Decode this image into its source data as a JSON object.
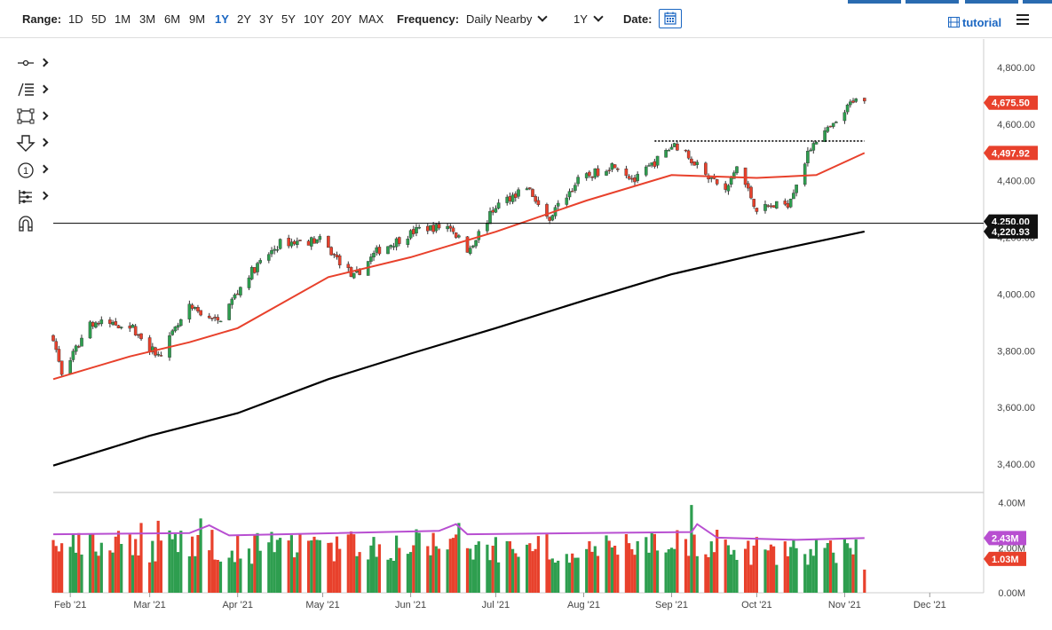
{
  "toolbar": {
    "range_label": "Range:",
    "ranges": [
      "1D",
      "5D",
      "1M",
      "3M",
      "6M",
      "9M",
      "1Y",
      "2Y",
      "3Y",
      "5Y",
      "10Y",
      "20Y",
      "MAX"
    ],
    "active_range": "1Y",
    "frequency_label": "Frequency:",
    "frequency_value": "Daily Nearby",
    "period_value": "1Y",
    "date_label": "Date:",
    "tutorial_label": "tutorial"
  },
  "tools": [
    "crosshair-icon",
    "fibonacci-icon",
    "rectangle-icon",
    "arrow-down-icon",
    "annotation-number-icon",
    "measure-icon",
    "magnet-icon"
  ],
  "colors": {
    "up_candle": "#2e9e4f",
    "down_candle": "#e8412c",
    "ma_short": "#e8412c",
    "ma_long": "#000000",
    "volume_avg": "#b84fd1",
    "price_badge": "#e8412c",
    "volume_badge": "#b84fd1"
  },
  "chart_data": {
    "type": "candlestick",
    "x_range": [
      "2021-01-26",
      "2021-12-20"
    ],
    "x_ticks": [
      "Feb '21",
      "Mar '21",
      "Apr '21",
      "May '21",
      "Jun '21",
      "Jul '21",
      "Aug '21",
      "Sep '21",
      "Oct '21",
      "Nov '21",
      "Dec '21"
    ],
    "price_axis": {
      "ylim": [
        3300,
        4900
      ],
      "ticks": [
        "3,400.00",
        "3,600.00",
        "3,800.00",
        "4,000.00",
        "4,200.00",
        "4,400.00",
        "4,600.00",
        "4,800.00"
      ]
    },
    "volume_axis": {
      "ylim": [
        0,
        4.3
      ],
      "ticks": [
        "0.00M",
        "2.00M",
        "4.00M"
      ]
    },
    "price_close_path": [
      {
        "d": "2021-01-26",
        "v": 3850
      },
      {
        "d": "2021-01-29",
        "v": 3710
      },
      {
        "d": "2021-02-08",
        "v": 3900
      },
      {
        "d": "2021-02-22",
        "v": 3890
      },
      {
        "d": "2021-03-04",
        "v": 3780
      },
      {
        "d": "2021-03-15",
        "v": 3950
      },
      {
        "d": "2021-03-25",
        "v": 3900
      },
      {
        "d": "2021-04-05",
        "v": 4070
      },
      {
        "d": "2021-04-16",
        "v": 4180
      },
      {
        "d": "2021-04-30",
        "v": 4190
      },
      {
        "d": "2021-05-12",
        "v": 4060
      },
      {
        "d": "2021-05-20",
        "v": 4150
      },
      {
        "d": "2021-06-04",
        "v": 4230
      },
      {
        "d": "2021-06-15",
        "v": 4240
      },
      {
        "d": "2021-06-21",
        "v": 4150
      },
      {
        "d": "2021-07-01",
        "v": 4310
      },
      {
        "d": "2021-07-12",
        "v": 4380
      },
      {
        "d": "2021-07-19",
        "v": 4260
      },
      {
        "d": "2021-07-30",
        "v": 4400
      },
      {
        "d": "2021-08-12",
        "v": 4460
      },
      {
        "d": "2021-08-19",
        "v": 4400
      },
      {
        "d": "2021-09-02",
        "v": 4530
      },
      {
        "d": "2021-09-10",
        "v": 4460
      },
      {
        "d": "2021-09-20",
        "v": 4360
      },
      {
        "d": "2021-09-24",
        "v": 4450
      },
      {
        "d": "2021-10-01",
        "v": 4300
      },
      {
        "d": "2021-10-12",
        "v": 4320
      },
      {
        "d": "2021-10-21",
        "v": 4540
      },
      {
        "d": "2021-10-29",
        "v": 4600
      },
      {
        "d": "2021-11-05",
        "v": 4700
      },
      {
        "d": "2021-11-08",
        "v": 4675
      }
    ],
    "ma_short_path": [
      {
        "d": "2021-01-26",
        "v": 3700
      },
      {
        "d": "2021-02-22",
        "v": 3780
      },
      {
        "d": "2021-03-15",
        "v": 3830
      },
      {
        "d": "2021-04-01",
        "v": 3880
      },
      {
        "d": "2021-05-03",
        "v": 4060
      },
      {
        "d": "2021-06-01",
        "v": 4130
      },
      {
        "d": "2021-07-01",
        "v": 4220
      },
      {
        "d": "2021-08-02",
        "v": 4330
      },
      {
        "d": "2021-09-01",
        "v": 4420
      },
      {
        "d": "2021-10-01",
        "v": 4410
      },
      {
        "d": "2021-10-22",
        "v": 4420
      },
      {
        "d": "2021-11-08",
        "v": 4497.92
      }
    ],
    "ma_long_path": [
      {
        "d": "2021-01-26",
        "v": 3395
      },
      {
        "d": "2021-03-01",
        "v": 3500
      },
      {
        "d": "2021-04-01",
        "v": 3580
      },
      {
        "d": "2021-05-03",
        "v": 3700
      },
      {
        "d": "2021-06-01",
        "v": 3790
      },
      {
        "d": "2021-07-01",
        "v": 3880
      },
      {
        "d": "2021-08-02",
        "v": 3980
      },
      {
        "d": "2021-09-01",
        "v": 4070
      },
      {
        "d": "2021-10-01",
        "v": 4140
      },
      {
        "d": "2021-11-08",
        "v": 4220.93
      }
    ],
    "horizontal_line": {
      "value": 4250,
      "label": "4,250.00"
    },
    "resistance_line": {
      "value": 4540,
      "from": "2021-08-26",
      "to": "2021-11-08"
    },
    "volume_bars": [
      {
        "d": "2021-01-29",
        "v": 2.2,
        "up": false
      },
      {
        "d": "2021-02-26",
        "v": 3.1,
        "up": false
      },
      {
        "d": "2021-03-04",
        "v": 3.2,
        "up": false
      },
      {
        "d": "2021-03-19",
        "v": 3.3,
        "up": true
      },
      {
        "d": "2021-05-12",
        "v": 2.6,
        "up": false
      },
      {
        "d": "2021-06-18",
        "v": 3.1,
        "up": true
      },
      {
        "d": "2021-07-19",
        "v": 2.6,
        "up": false
      },
      {
        "d": "2021-09-08",
        "v": 3.9,
        "up": true
      },
      {
        "d": "2021-09-17",
        "v": 2.8,
        "up": false
      },
      {
        "d": "2021-11-08",
        "v": 1.03,
        "up": false
      }
    ],
    "volume_avg_path": [
      {
        "d": "2021-01-26",
        "v": 2.6
      },
      {
        "d": "2021-03-15",
        "v": 2.65
      },
      {
        "d": "2021-03-22",
        "v": 3.0
      },
      {
        "d": "2021-03-29",
        "v": 2.55
      },
      {
        "d": "2021-06-11",
        "v": 2.75
      },
      {
        "d": "2021-06-17",
        "v": 3.05
      },
      {
        "d": "2021-06-21",
        "v": 2.6
      },
      {
        "d": "2021-09-08",
        "v": 2.7
      },
      {
        "d": "2021-09-10",
        "v": 3.05
      },
      {
        "d": "2021-09-17",
        "v": 2.45
      },
      {
        "d": "2021-10-15",
        "v": 2.35
      },
      {
        "d": "2021-11-08",
        "v": 2.43
      }
    ],
    "price_badges": [
      "4,675.50",
      "4,497.92",
      "4,220.93"
    ],
    "volume_badges": [
      "2.43M",
      "1.03M"
    ]
  }
}
